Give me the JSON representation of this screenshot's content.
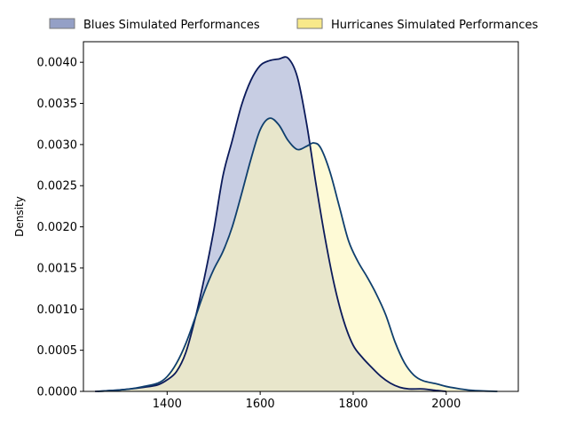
{
  "chart_data": {
    "type": "area",
    "title": "",
    "xlabel": "",
    "ylabel": "Density",
    "xlim": [
      1220,
      2155
    ],
    "ylim": [
      0,
      0.00425
    ],
    "x_ticks": [
      1400,
      1600,
      1800,
      2000
    ],
    "x_tick_labels": [
      "1400",
      "1600",
      "1800",
      "2000"
    ],
    "y_ticks": [
      0,
      0.0005,
      0.001,
      0.0015,
      0.002,
      0.0025,
      0.003,
      0.0035,
      0.004
    ],
    "y_tick_labels": [
      "0.0000",
      "0.0005",
      "0.0010",
      "0.0015",
      "0.0020",
      "0.0025",
      "0.0030",
      "0.0035",
      "0.0040"
    ],
    "grid": false,
    "legend_position": "top-center, above plot, 2 columns",
    "series": [
      {
        "name": "Blues Simulated Performances",
        "fill_color": "#c7cde3",
        "legend_fill_color": "#94a0c6",
        "line_color": "#0b1a5a",
        "points": [
          [
            1245,
            0.0
          ],
          [
            1280,
            1e-05
          ],
          [
            1320,
            3e-05
          ],
          [
            1350,
            5e-05
          ],
          [
            1380,
            8e-05
          ],
          [
            1400,
            0.00014
          ],
          [
            1420,
            0.00024
          ],
          [
            1440,
            0.00047
          ],
          [
            1460,
            0.00088
          ],
          [
            1480,
            0.00138
          ],
          [
            1500,
            0.00195
          ],
          [
            1520,
            0.00262
          ],
          [
            1540,
            0.00305
          ],
          [
            1560,
            0.00348
          ],
          [
            1580,
            0.00378
          ],
          [
            1600,
            0.00396
          ],
          [
            1620,
            0.00402
          ],
          [
            1640,
            0.00404
          ],
          [
            1660,
            0.00405
          ],
          [
            1680,
            0.00382
          ],
          [
            1700,
            0.00325
          ],
          [
            1720,
            0.00252
          ],
          [
            1740,
            0.00185
          ],
          [
            1760,
            0.00128
          ],
          [
            1780,
            0.00085
          ],
          [
            1800,
            0.00056
          ],
          [
            1820,
            0.00041
          ],
          [
            1840,
            0.00029
          ],
          [
            1860,
            0.00018
          ],
          [
            1880,
            0.0001
          ],
          [
            1900,
            5e-05
          ],
          [
            1920,
            3e-05
          ],
          [
            1950,
            3e-05
          ],
          [
            1980,
            1e-05
          ],
          [
            2000,
            0.0
          ]
        ]
      },
      {
        "name": "Hurricanes Simulated Performances",
        "fill_color": "#fdf7bb",
        "legend_fill_color": "#f8e98a",
        "line_color": "#0f3f6e",
        "points": [
          [
            1250,
            0.0
          ],
          [
            1280,
            1e-05
          ],
          [
            1320,
            3e-05
          ],
          [
            1350,
            6e-05
          ],
          [
            1380,
            0.0001
          ],
          [
            1400,
            0.00018
          ],
          [
            1420,
            0.00034
          ],
          [
            1440,
            0.00058
          ],
          [
            1460,
            0.00089
          ],
          [
            1480,
            0.00121
          ],
          [
            1500,
            0.00148
          ],
          [
            1520,
            0.0017
          ],
          [
            1540,
            0.002
          ],
          [
            1560,
            0.0024
          ],
          [
            1580,
            0.00282
          ],
          [
            1600,
            0.00318
          ],
          [
            1620,
            0.00332
          ],
          [
            1640,
            0.00324
          ],
          [
            1660,
            0.00305
          ],
          [
            1680,
            0.00294
          ],
          [
            1700,
            0.00298
          ],
          [
            1715,
            0.00302
          ],
          [
            1730,
            0.00296
          ],
          [
            1750,
            0.00267
          ],
          [
            1770,
            0.00225
          ],
          [
            1790,
            0.00183
          ],
          [
            1810,
            0.00158
          ],
          [
            1830,
            0.00139
          ],
          [
            1850,
            0.00118
          ],
          [
            1870,
            0.00093
          ],
          [
            1890,
            0.0006
          ],
          [
            1910,
            0.00035
          ],
          [
            1930,
            0.0002
          ],
          [
            1950,
            0.00013
          ],
          [
            1980,
            9e-05
          ],
          [
            2000,
            6e-05
          ],
          [
            2030,
            3e-05
          ],
          [
            2060,
            1e-05
          ],
          [
            2110,
            0.0
          ]
        ]
      }
    ]
  }
}
